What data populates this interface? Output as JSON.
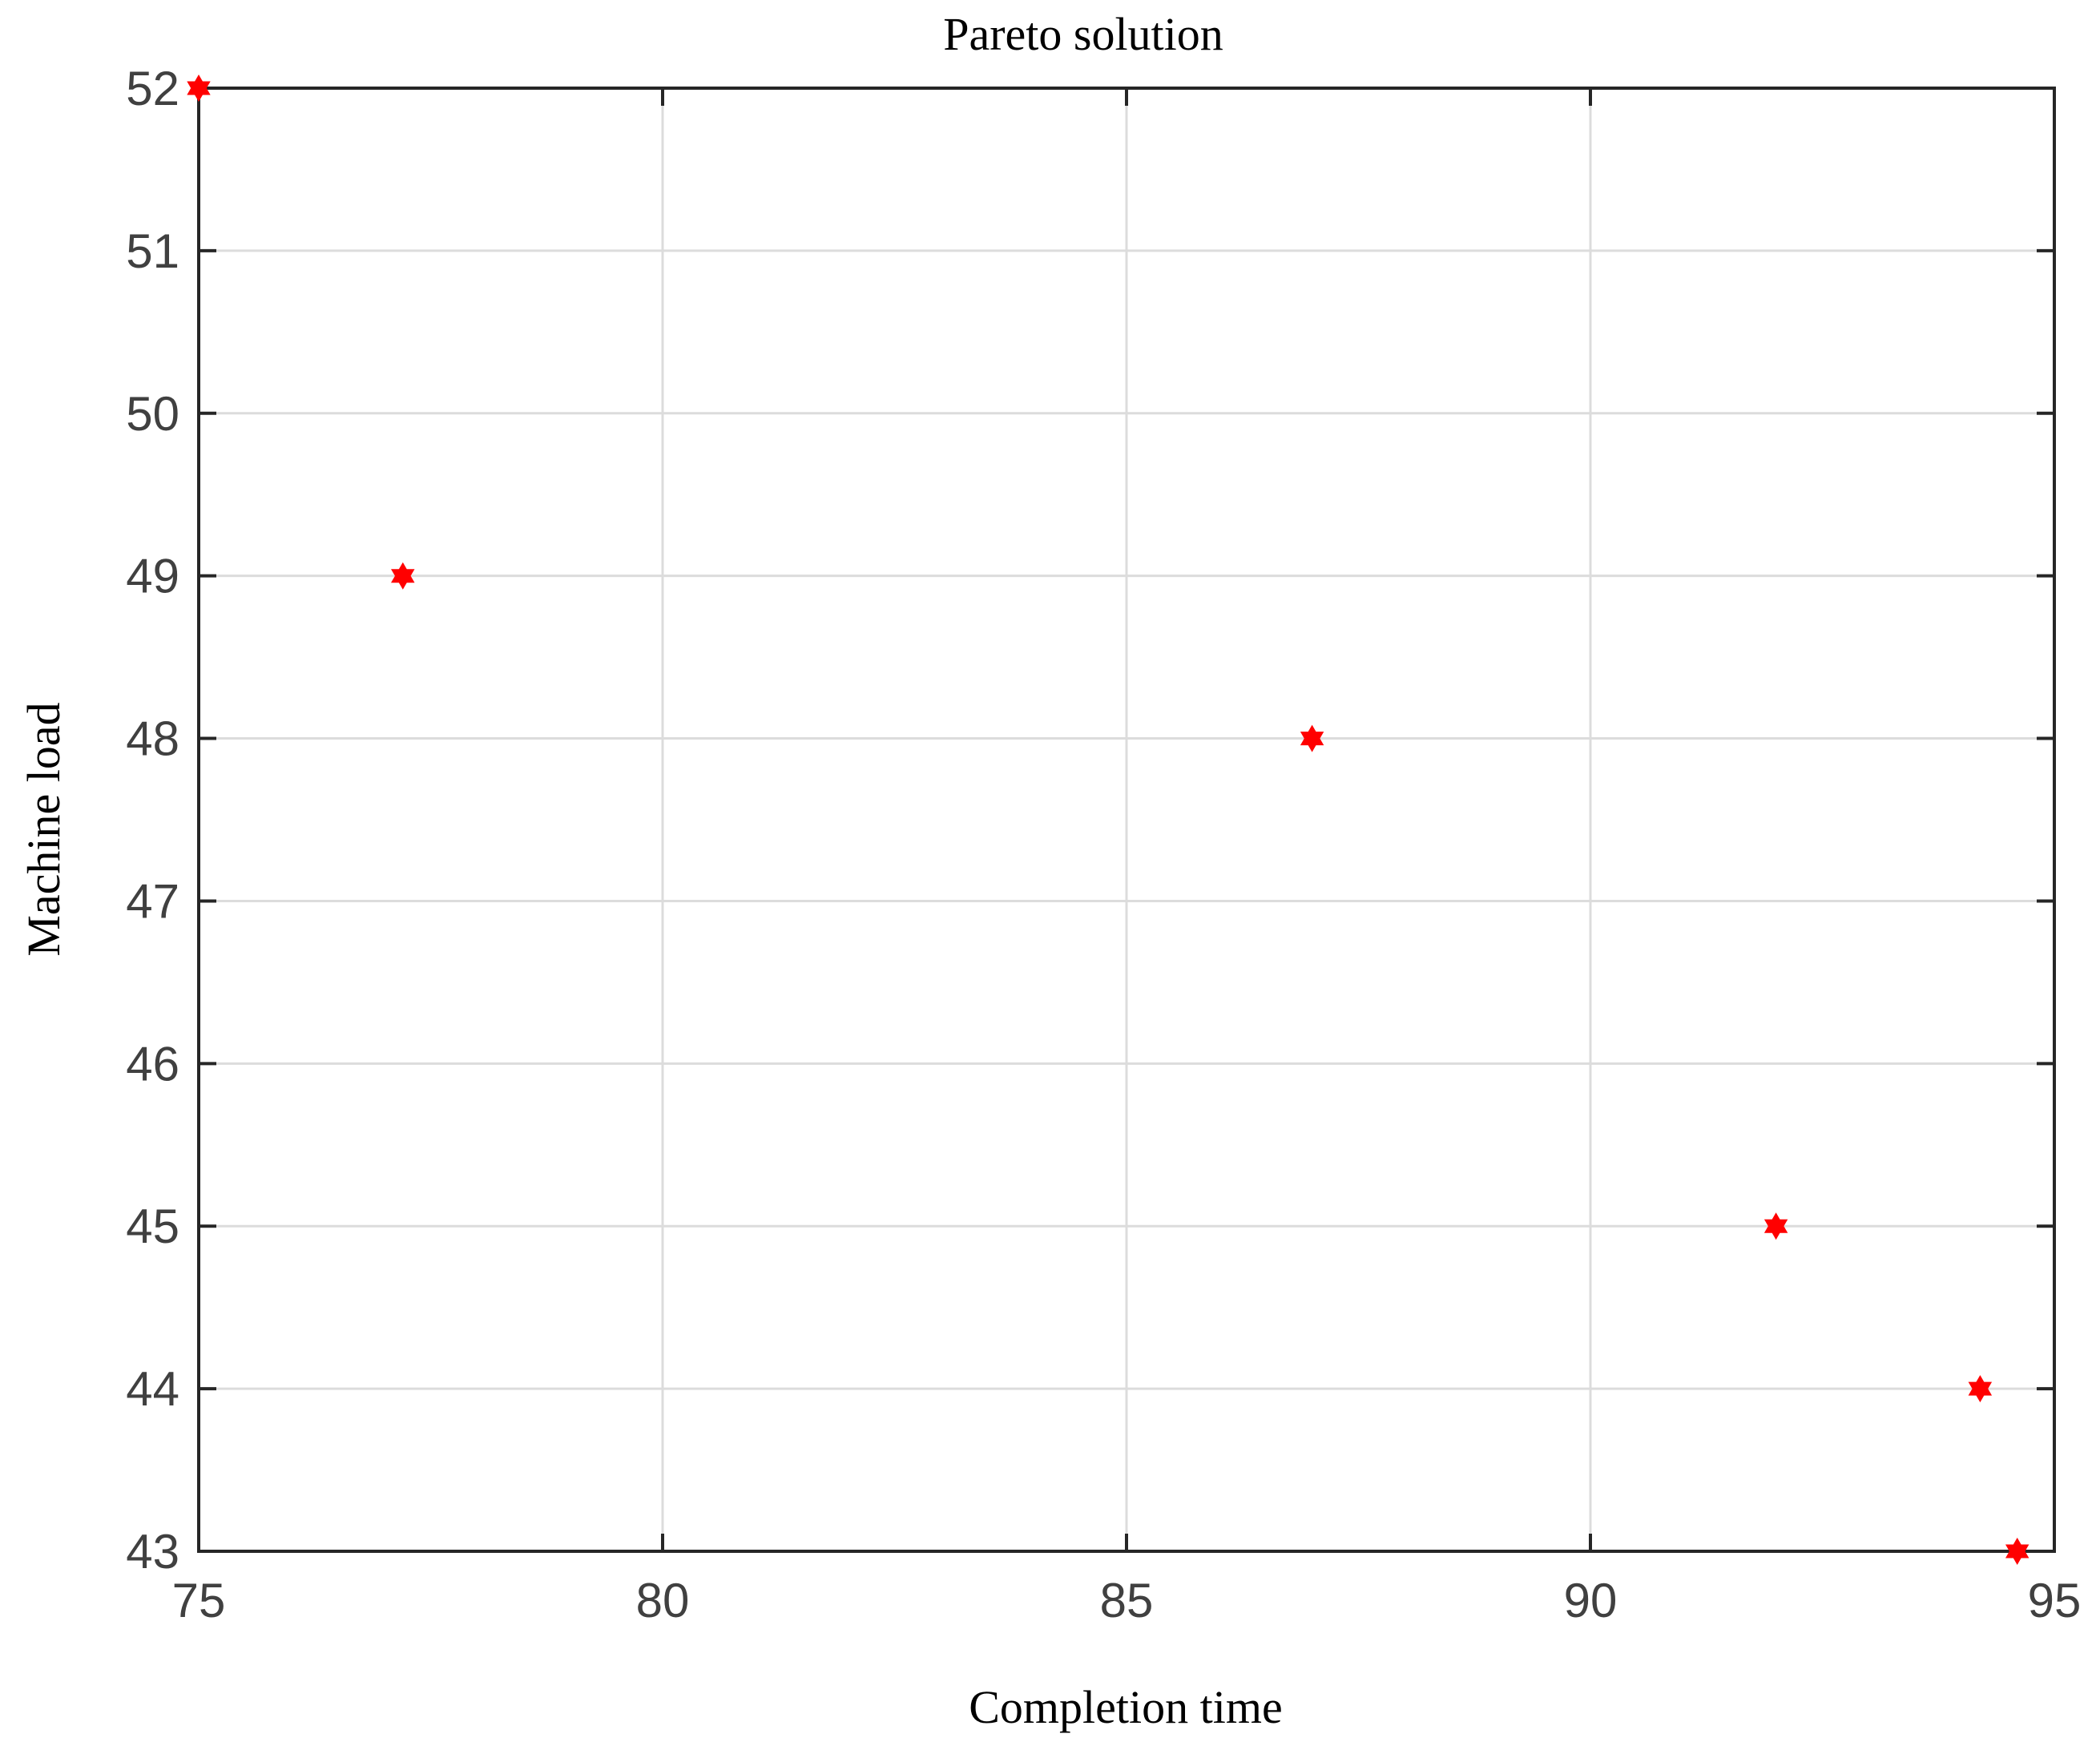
{
  "chart_data": {
    "type": "scatter",
    "title": "Pareto solution",
    "xlabel": "Completion time",
    "ylabel": "Machine load",
    "xlim": [
      75,
      95
    ],
    "ylim": [
      43,
      52
    ],
    "xticks": [
      "75",
      "80",
      "85",
      "90",
      "95"
    ],
    "yticks": [
      "43",
      "44",
      "45",
      "46",
      "47",
      "48",
      "49",
      "50",
      "51",
      "52"
    ],
    "grid": true,
    "legend": "none",
    "marker": "hexagram",
    "marker_color": "#ff0000",
    "points": [
      {
        "x": 75.0,
        "y": 52
      },
      {
        "x": 77.2,
        "y": 49
      },
      {
        "x": 87.0,
        "y": 48
      },
      {
        "x": 92.0,
        "y": 45
      },
      {
        "x": 94.2,
        "y": 44
      },
      {
        "x": 94.6,
        "y": 43
      }
    ]
  }
}
